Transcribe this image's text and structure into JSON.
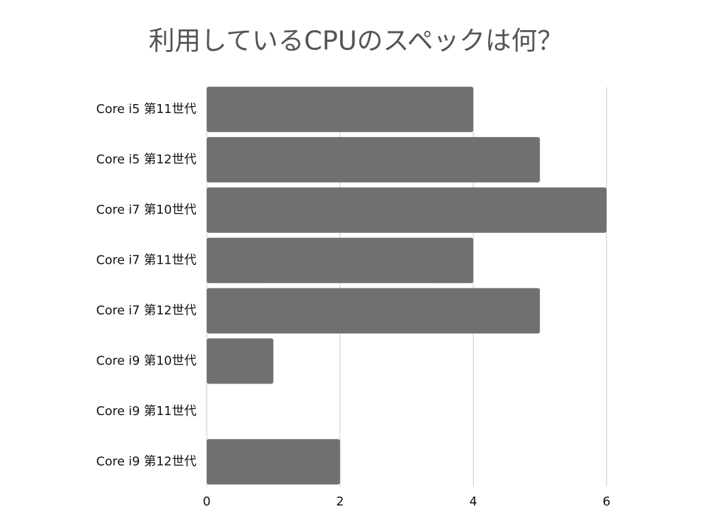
{
  "chart_data": {
    "type": "bar",
    "orientation": "horizontal",
    "title": "利用しているCPUのスペックは何？",
    "categories": [
      "Core i5 第11世代",
      "Core i5 第12世代",
      "Core i7 第10世代",
      "Core i7 第11世代",
      "Core i7 第12世代",
      "Core i9 第10世代",
      "Core i9 第11世代",
      "Core i9 第12世代"
    ],
    "values": [
      4,
      5,
      6,
      4,
      5,
      1,
      0,
      2
    ],
    "color": "#707070",
    "xlim": [
      0,
      6
    ],
    "xticks": [
      0,
      2,
      4,
      6
    ],
    "grid": true
  }
}
